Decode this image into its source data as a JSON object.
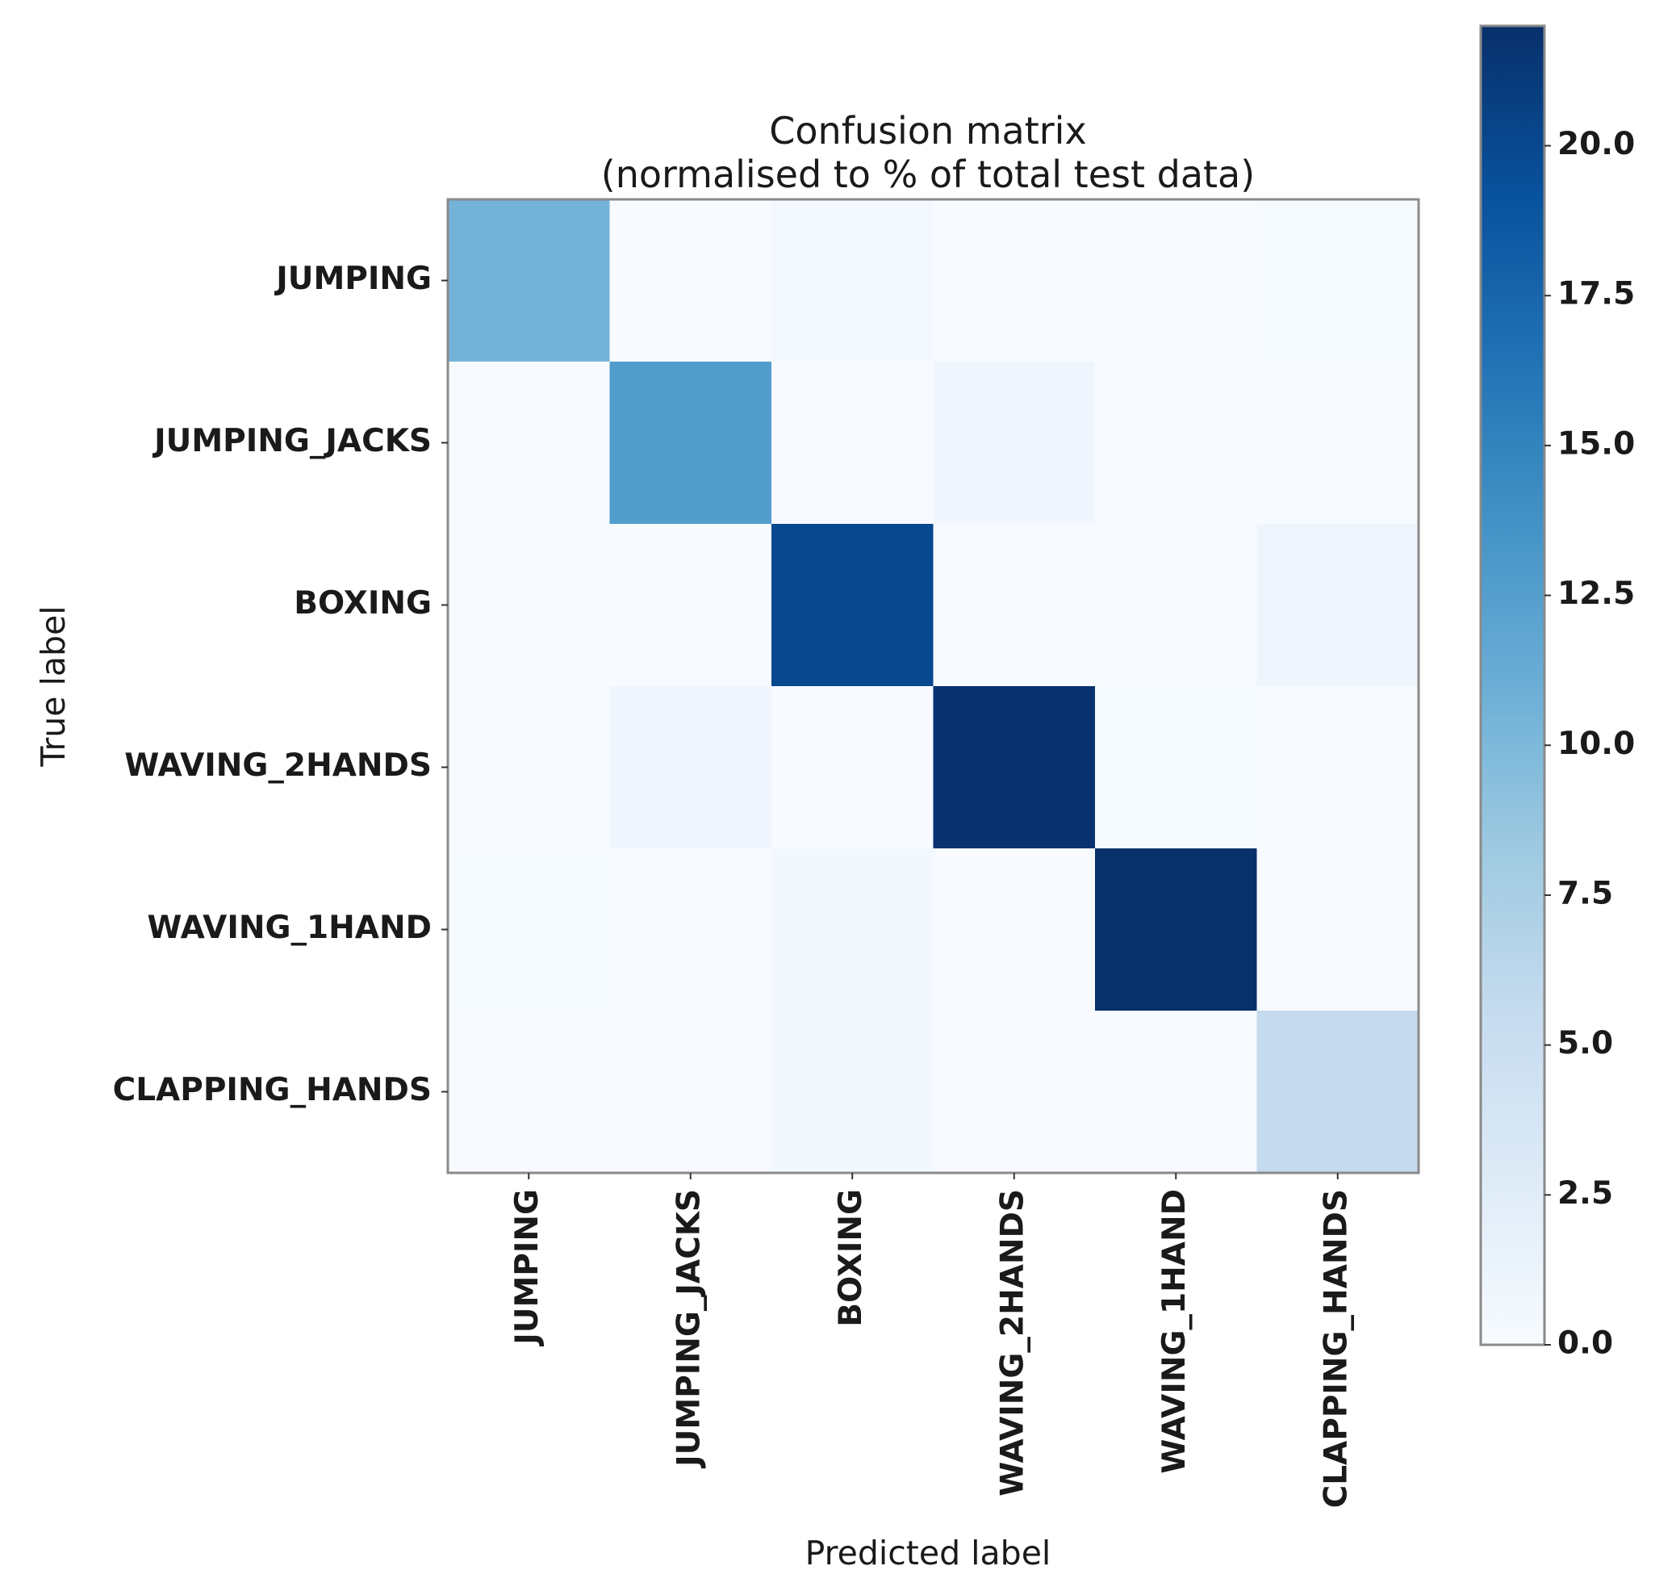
{
  "chart_data": {
    "type": "heatmap",
    "title_line1": "Confusion matrix",
    "title_line2": "(normalised to % of total test data)",
    "xlabel": "Predicted label",
    "ylabel": "True label",
    "row_labels": [
      "JUMPING",
      "JUMPING_JACKS",
      "BOXING",
      "WAVING_2HANDS",
      "WAVING_1HAND",
      "CLAPPING_HANDS"
    ],
    "col_labels": [
      "JUMPING",
      "JUMPING_JACKS",
      "BOXING",
      "WAVING_2HANDS",
      "WAVING_1HAND",
      "CLAPPING_HANDS"
    ],
    "matrix": [
      [
        10.5,
        0.0,
        0.4,
        0.0,
        0.0,
        0.2
      ],
      [
        0.0,
        12.7,
        0.0,
        0.8,
        0.0,
        0.0
      ],
      [
        0.0,
        0.0,
        20.0,
        0.0,
        0.0,
        1.0
      ],
      [
        0.0,
        0.8,
        0.0,
        21.8,
        0.2,
        0.0
      ],
      [
        0.2,
        0.0,
        0.6,
        0.0,
        22.0,
        0.0
      ],
      [
        0.0,
        0.0,
        0.5,
        0.0,
        0.0,
        5.6
      ]
    ],
    "colormap": "Blues",
    "colorbar": {
      "min": 0.0,
      "max": 22.0,
      "ticks": [
        0.0,
        2.5,
        5.0,
        7.5,
        10.0,
        12.5,
        15.0,
        17.5,
        20.0
      ],
      "tick_labels": [
        "0.0",
        "2.5",
        "5.0",
        "7.5",
        "10.0",
        "12.5",
        "15.0",
        "17.5",
        "20.0"
      ]
    },
    "colors": [
      "#f7fbff",
      "#deebf7",
      "#c6dbef",
      "#9ecae1",
      "#6baed6",
      "#4292c6",
      "#2171b5",
      "#08519c",
      "#08306b"
    ]
  }
}
